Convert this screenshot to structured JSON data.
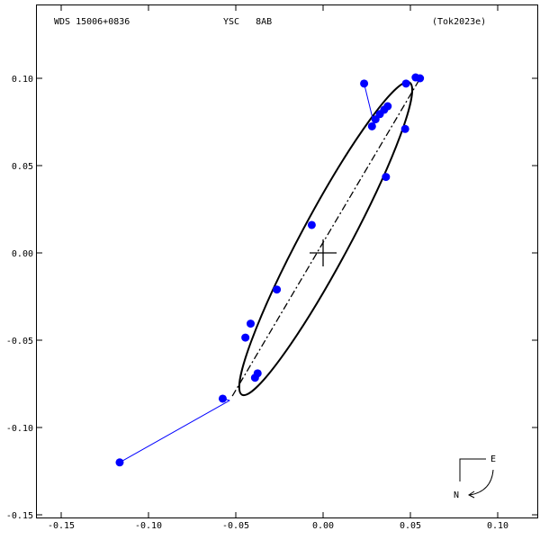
{
  "header": {
    "system": "WDS 15006+0836",
    "designation": "YSC   8AB",
    "reference": "(Tok2023e)"
  },
  "compass": {
    "east": "E",
    "north": "N"
  },
  "chart_data": {
    "type": "scatter",
    "xlim": [
      -0.155,
      0.12
    ],
    "ylim": [
      -0.15,
      0.103
    ],
    "x_ticks": [
      -0.15,
      -0.1,
      -0.05,
      0.0,
      0.05,
      0.1
    ],
    "x_tick_labels": [
      "-0.15",
      "-0.10",
      "-0.05",
      "0.00",
      "0.05",
      "0.10"
    ],
    "y_ticks": [
      0.1,
      0.05,
      0.0,
      -0.05,
      -0.1,
      -0.15
    ],
    "y_tick_labels": [
      "0.10",
      "0.05",
      "0.00",
      "-0.05",
      "-0.10",
      "-0.15"
    ],
    "orbit": {
      "center": [
        0.0015,
        0.0082
      ],
      "semi_major": 0.1015,
      "semi_minor": 0.0139,
      "orientation_deg": 61.8
    },
    "line_of_nodes": [
      [
        0.055,
        0.099
      ],
      [
        -0.052,
        -0.082
      ]
    ],
    "primary": [
      0.0,
      0.0
    ],
    "observations": [
      {
        "x": 0.0235,
        "y": 0.097,
        "fit_x": 0.0285,
        "fit_y": 0.0765
      },
      {
        "x": 0.028,
        "y": 0.0725,
        "fit_x": 0.0285,
        "fit_y": 0.074
      },
      {
        "x": 0.03,
        "y": 0.0765,
        "fit_x": 0.03,
        "fit_y": 0.0765
      },
      {
        "x": 0.0325,
        "y": 0.0795,
        "fit_x": 0.0325,
        "fit_y": 0.0795
      },
      {
        "x": 0.035,
        "y": 0.082,
        "fit_x": 0.035,
        "fit_y": 0.082
      },
      {
        "x": 0.037,
        "y": 0.084,
        "fit_x": 0.037,
        "fit_y": 0.084
      },
      {
        "x": 0.0475,
        "y": 0.097,
        "fit_x": 0.0475,
        "fit_y": 0.097
      },
      {
        "x": 0.053,
        "y": 0.1005,
        "fit_x": 0.053,
        "fit_y": 0.1005
      },
      {
        "x": 0.0555,
        "y": 0.1,
        "fit_x": 0.0555,
        "fit_y": 0.1
      },
      {
        "x": 0.047,
        "y": 0.071,
        "fit_x": 0.047,
        "fit_y": 0.071
      },
      {
        "x": 0.036,
        "y": 0.0435,
        "fit_x": 0.036,
        "fit_y": 0.0435
      },
      {
        "x": -0.0065,
        "y": 0.016,
        "fit_x": -0.0065,
        "fit_y": 0.016
      },
      {
        "x": -0.0265,
        "y": -0.021,
        "fit_x": -0.0265,
        "fit_y": -0.021
      },
      {
        "x": -0.0415,
        "y": -0.0405,
        "fit_x": -0.0415,
        "fit_y": -0.0405
      },
      {
        "x": -0.0445,
        "y": -0.0485,
        "fit_x": -0.0445,
        "fit_y": -0.0485
      },
      {
        "x": -0.0375,
        "y": -0.069,
        "fit_x": -0.0375,
        "fit_y": -0.069
      },
      {
        "x": -0.039,
        "y": -0.0715,
        "fit_x": -0.039,
        "fit_y": -0.0715
      },
      {
        "x": -0.0575,
        "y": -0.0835,
        "fit_x": -0.0535,
        "fit_y": -0.0845
      },
      {
        "x": -0.1165,
        "y": -0.12,
        "fit_x": -0.0535,
        "fit_y": -0.0845
      }
    ],
    "colors": {
      "points": "#0000ff",
      "orbit": "#000000",
      "residual": "#0000ff"
    }
  }
}
